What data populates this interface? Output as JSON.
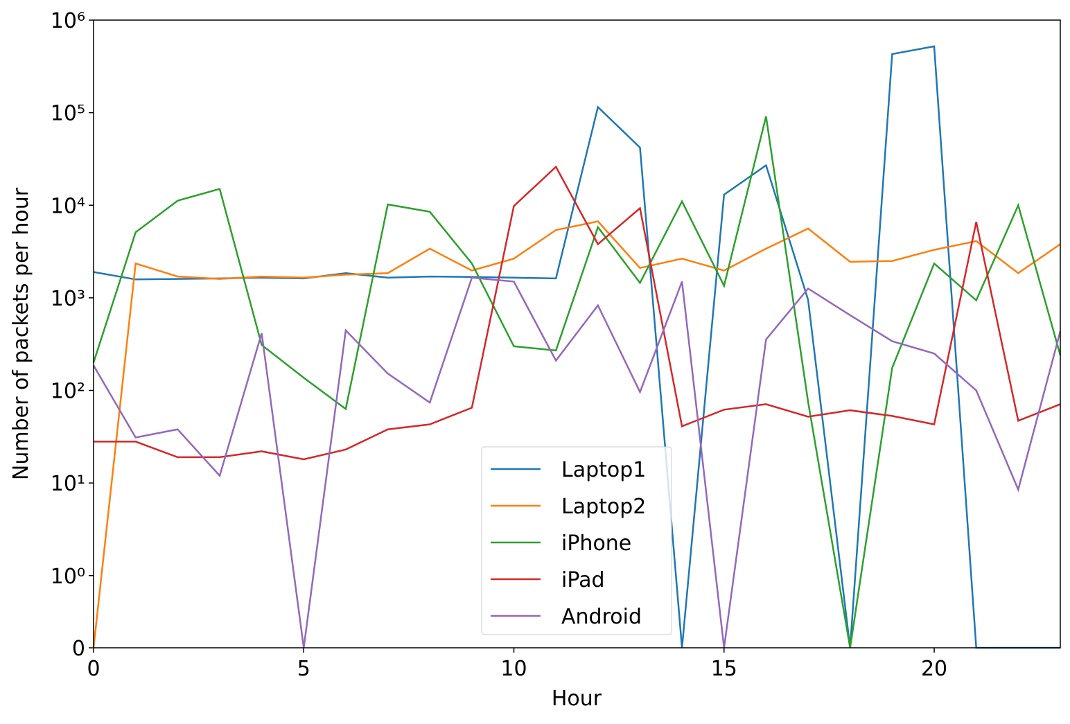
{
  "chart_data": {
    "type": "line",
    "x_label": "Hour",
    "y_label": "Number of packets per hour",
    "yscale": "symlog",
    "x": [
      0,
      1,
      2,
      3,
      4,
      5,
      6,
      7,
      8,
      9,
      10,
      11,
      12,
      13,
      14,
      15,
      16,
      17,
      18,
      19,
      20,
      21,
      22,
      23
    ],
    "xlim": [
      0,
      23
    ],
    "xticks": [
      0,
      5,
      10,
      15,
      20
    ],
    "ylim": [
      0,
      1000000
    ],
    "yticks": [
      0,
      {
        "value": 1,
        "label": "10⁰"
      },
      {
        "value": 10,
        "label": "10¹"
      },
      {
        "value": 100,
        "label": "10²"
      },
      {
        "value": 1000,
        "label": "10³"
      },
      {
        "value": 10000,
        "label": "10⁴"
      },
      {
        "value": 100000,
        "label": "10⁵"
      },
      {
        "value": 1000000,
        "label": "10⁶"
      }
    ],
    "legend": "lower center",
    "series": [
      {
        "name": "Laptop1",
        "color": "#1f77b4",
        "values": [
          1900,
          1580,
          1600,
          1620,
          1650,
          1620,
          1850,
          1650,
          1700,
          1680,
          1650,
          1620,
          115000,
          42000,
          0,
          13000,
          27000,
          950,
          0,
          430000,
          520000,
          0,
          0,
          0
        ]
      },
      {
        "name": "Laptop2",
        "color": "#ff7f0e",
        "values": [
          0,
          2350,
          1700,
          1600,
          1700,
          1650,
          1780,
          1850,
          3400,
          1970,
          2650,
          5400,
          6700,
          2100,
          2650,
          1970,
          3400,
          5600,
          2450,
          2500,
          3300,
          4100,
          1850,
          3800
        ]
      },
      {
        "name": "iPhone",
        "color": "#2ca02c",
        "values": [
          200,
          5100,
          11200,
          15000,
          310,
          137,
          63,
          10200,
          8500,
          2350,
          300,
          270,
          5800,
          1450,
          11000,
          1350,
          91000,
          75,
          0,
          175,
          2350,
          940,
          10000,
          240
        ]
      },
      {
        "name": "iPad",
        "color": "#d62728",
        "values": [
          28,
          28,
          19,
          19,
          22,
          18,
          23,
          38,
          43,
          65,
          9800,
          26000,
          3800,
          9300,
          41,
          62,
          71,
          52,
          61,
          53,
          43,
          6600,
          47,
          71
        ]
      },
      {
        "name": "Android",
        "color": "#9467bd",
        "values": [
          186,
          31,
          38,
          12,
          415,
          0,
          445,
          152,
          74,
          1650,
          1500,
          210,
          830,
          96,
          1500,
          0,
          355,
          1260,
          650,
          340,
          250,
          100,
          8.5,
          435
        ]
      }
    ]
  }
}
